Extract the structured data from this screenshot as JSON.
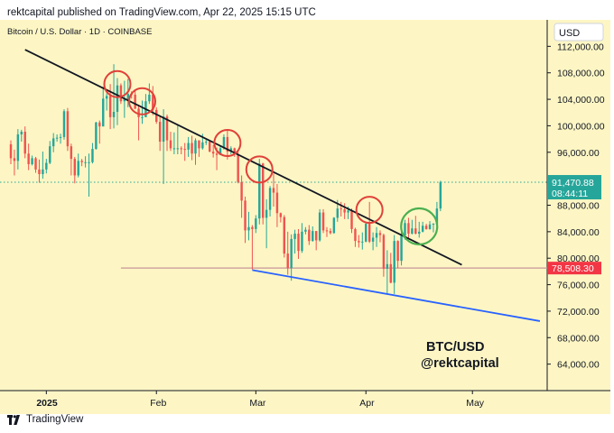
{
  "header": {
    "text": "rektcapital published on TradingView.com, Apr 22, 2025 15:15 UTC"
  },
  "footer": {
    "brand": "TradingView",
    "logo_icon": "tradingview-logo-icon"
  },
  "chart_data": {
    "type": "candlestick",
    "symbol_title": "Bitcoin / U.S. Dollar · 1D · COINBASE",
    "currency": "USD",
    "ylim": [
      60000,
      116000
    ],
    "y_ticks": [
      64000,
      68000,
      72000,
      76000,
      80000,
      84000,
      88000,
      92000,
      96000,
      100000,
      104000,
      108000,
      112000
    ],
    "y_tick_labels": [
      "64,000.00",
      "68,000.00",
      "72,000.00",
      "76,000.00",
      "80,000.00",
      "84,000.00",
      "88,000.00",
      "92,000.00",
      "96,000.00",
      "100,000.00",
      "104,000.00",
      "108,000.00",
      "112,000.00"
    ],
    "x_range": [
      "2024-12-22",
      "2025-05-19"
    ],
    "x_ticks": [
      {
        "date": "2025-01-01",
        "label": "2025",
        "bold": true
      },
      {
        "date": "2025-02-01",
        "label": "Feb",
        "bold": false
      },
      {
        "date": "2025-03-01",
        "label": "Mar",
        "bold": false
      },
      {
        "date": "2025-04-01",
        "label": "Apr",
        "bold": false
      },
      {
        "date": "2025-05-01",
        "label": "May",
        "bold": false
      }
    ],
    "ohlc": [
      [
        "2024-12-22",
        97200,
        97800,
        94200,
        95100
      ],
      [
        "2024-12-23",
        95100,
        96400,
        92500,
        94700
      ],
      [
        "2024-12-24",
        94700,
        99500,
        93400,
        98700
      ],
      [
        "2024-12-25",
        98700,
        99400,
        97600,
        99100
      ],
      [
        "2024-12-26",
        99100,
        99900,
        95100,
        95800
      ],
      [
        "2024-12-27",
        95800,
        97300,
        93300,
        94200
      ],
      [
        "2024-12-28",
        94200,
        95500,
        94000,
        95100
      ],
      [
        "2024-12-29",
        95100,
        95300,
        92900,
        93400
      ],
      [
        "2024-12-30",
        93400,
        94900,
        91400,
        92700
      ],
      [
        "2024-12-31",
        92700,
        96100,
        92000,
        93400
      ],
      [
        "2025-01-01",
        93400,
        95000,
        92800,
        94400
      ],
      [
        "2025-01-02",
        94400,
        97700,
        94200,
        96900
      ],
      [
        "2025-01-03",
        96900,
        98900,
        96000,
        98100
      ],
      [
        "2025-01-04",
        98100,
        98700,
        97600,
        98200
      ],
      [
        "2025-01-05",
        98200,
        98800,
        97300,
        98300
      ],
      [
        "2025-01-06",
        98300,
        102500,
        97900,
        102200
      ],
      [
        "2025-01-07",
        102200,
        102700,
        96200,
        96900
      ],
      [
        "2025-01-08",
        96900,
        97300,
        92500,
        95000
      ],
      [
        "2025-01-09",
        95000,
        95300,
        91300,
        92500
      ],
      [
        "2025-01-10",
        92500,
        95800,
        92200,
        94700
      ],
      [
        "2025-01-11",
        94700,
        95000,
        93900,
        94500
      ],
      [
        "2025-01-12",
        94500,
        95400,
        93700,
        94500
      ],
      [
        "2025-01-13",
        94500,
        95800,
        89300,
        94500
      ],
      [
        "2025-01-14",
        94500,
        97400,
        94300,
        96500
      ],
      [
        "2025-01-15",
        96500,
        100600,
        96400,
        100500
      ],
      [
        "2025-01-16",
        100500,
        100800,
        97300,
        99900
      ],
      [
        "2025-01-17",
        99900,
        105900,
        99900,
        104100
      ],
      [
        "2025-01-18",
        104100,
        104900,
        102300,
        104500
      ],
      [
        "2025-01-19",
        104500,
        106300,
        99500,
        101300
      ],
      [
        "2025-01-20",
        101300,
        109300,
        99600,
        102100
      ],
      [
        "2025-01-21",
        102100,
        107200,
        100100,
        106100
      ],
      [
        "2025-01-22",
        106100,
        106400,
        103300,
        103700
      ],
      [
        "2025-01-23",
        103700,
        106800,
        101200,
        104000
      ],
      [
        "2025-01-24",
        104000,
        107100,
        102800,
        104800
      ],
      [
        "2025-01-25",
        104800,
        105200,
        104100,
        104700
      ],
      [
        "2025-01-26",
        104700,
        105500,
        102500,
        102600
      ],
      [
        "2025-01-27",
        102600,
        103200,
        97800,
        101300
      ],
      [
        "2025-01-28",
        101300,
        103800,
        100300,
        101300
      ],
      [
        "2025-01-29",
        101300,
        104800,
        101300,
        103700
      ],
      [
        "2025-01-30",
        103700,
        106400,
        103300,
        104700
      ],
      [
        "2025-01-31",
        104700,
        106000,
        101600,
        102400
      ],
      [
        "2025-02-01",
        102400,
        102800,
        100300,
        100600
      ],
      [
        "2025-02-02",
        100600,
        101500,
        96200,
        97600
      ],
      [
        "2025-02-03",
        97600,
        102500,
        91200,
        101400
      ],
      [
        "2025-02-04",
        101400,
        101700,
        96200,
        97800
      ],
      [
        "2025-02-05",
        97800,
        99100,
        96200,
        96600
      ],
      [
        "2025-02-06",
        96600,
        99000,
        95700,
        96600
      ],
      [
        "2025-02-07",
        96600,
        100100,
        95700,
        96600
      ],
      [
        "2025-02-08",
        96600,
        96900,
        95700,
        96500
      ],
      [
        "2025-02-09",
        96500,
        97400,
        94700,
        96400
      ],
      [
        "2025-02-10",
        96400,
        98300,
        95300,
        97400
      ],
      [
        "2025-02-11",
        97400,
        98500,
        94800,
        95800
      ],
      [
        "2025-02-12",
        95800,
        98100,
        94100,
        97800
      ],
      [
        "2025-02-13",
        97800,
        97800,
        95300,
        96600
      ],
      [
        "2025-02-14",
        96600,
        98800,
        96400,
        97500
      ],
      [
        "2025-02-15",
        97500,
        97900,
        97100,
        97600
      ],
      [
        "2025-02-16",
        97600,
        97800,
        96000,
        96100
      ],
      [
        "2025-02-17",
        96100,
        97100,
        95200,
        95800
      ],
      [
        "2025-02-18",
        95800,
        96700,
        93300,
        95600
      ],
      [
        "2025-02-19",
        95600,
        96900,
        95600,
        96600
      ],
      [
        "2025-02-20",
        96600,
        98700,
        96400,
        98300
      ],
      [
        "2025-02-21",
        98300,
        99500,
        94900,
        96100
      ],
      [
        "2025-02-22",
        96100,
        96900,
        95700,
        96600
      ],
      [
        "2025-02-23",
        96600,
        96700,
        95300,
        95700
      ],
      [
        "2025-02-24",
        95700,
        96200,
        91300,
        91500
      ],
      [
        "2025-02-25",
        91500,
        92500,
        86100,
        88700
      ],
      [
        "2025-02-26",
        88700,
        89300,
        82300,
        84200
      ],
      [
        "2025-02-27",
        84200,
        87000,
        82700,
        84700
      ],
      [
        "2025-02-28",
        84700,
        85000,
        78300,
        84400
      ],
      [
        "2025-03-01",
        84400,
        86500,
        83800,
        86000
      ],
      [
        "2025-03-02",
        86000,
        95000,
        85100,
        94300
      ],
      [
        "2025-03-03",
        94300,
        94400,
        85100,
        86100
      ],
      [
        "2025-03-04",
        86100,
        88900,
        81500,
        87300
      ],
      [
        "2025-03-05",
        87300,
        90900,
        86300,
        90600
      ],
      [
        "2025-03-06",
        90600,
        92800,
        87800,
        89900
      ],
      [
        "2025-03-07",
        89900,
        91200,
        84700,
        86800
      ],
      [
        "2025-03-08",
        86800,
        86900,
        85400,
        86200
      ],
      [
        "2025-03-09",
        86200,
        86500,
        80100,
        80700
      ],
      [
        "2025-03-10",
        80700,
        84000,
        77500,
        78500
      ],
      [
        "2025-03-11",
        78500,
        83600,
        76600,
        82900
      ],
      [
        "2025-03-12",
        82900,
        84300,
        80700,
        83700
      ],
      [
        "2025-03-13",
        83700,
        84400,
        79900,
        81100
      ],
      [
        "2025-03-14",
        81100,
        85300,
        80800,
        84000
      ],
      [
        "2025-03-15",
        84000,
        84700,
        83600,
        84300
      ],
      [
        "2025-03-16",
        84300,
        85000,
        82000,
        82600
      ],
      [
        "2025-03-17",
        82600,
        84800,
        82500,
        84100
      ],
      [
        "2025-03-18",
        84100,
        84100,
        81200,
        82700
      ],
      [
        "2025-03-19",
        82700,
        87400,
        82500,
        86900
      ],
      [
        "2025-03-20",
        86900,
        87400,
        83800,
        84200
      ],
      [
        "2025-03-21",
        84200,
        84700,
        83200,
        84100
      ],
      [
        "2025-03-22",
        84100,
        84500,
        83600,
        83800
      ],
      [
        "2025-03-23",
        83800,
        86200,
        83700,
        86100
      ],
      [
        "2025-03-24",
        86100,
        88800,
        85500,
        87500
      ],
      [
        "2025-03-25",
        87500,
        88500,
        86300,
        87400
      ],
      [
        "2025-03-26",
        87400,
        88300,
        85900,
        86900
      ],
      [
        "2025-03-27",
        86900,
        87800,
        85900,
        87200
      ],
      [
        "2025-03-28",
        87200,
        87500,
        83800,
        84400
      ],
      [
        "2025-03-29",
        84400,
        84600,
        81700,
        82600
      ],
      [
        "2025-03-30",
        82600,
        83500,
        81600,
        82400
      ],
      [
        "2025-03-31",
        82400,
        83900,
        81300,
        82500
      ],
      [
        "2025-04-01",
        82500,
        85500,
        82400,
        85200
      ],
      [
        "2025-04-02",
        85200,
        88500,
        82300,
        82500
      ],
      [
        "2025-04-03",
        82500,
        83900,
        81200,
        83100
      ],
      [
        "2025-04-04",
        83100,
        84700,
        81700,
        83800
      ],
      [
        "2025-04-05",
        83800,
        84200,
        82400,
        83500
      ],
      [
        "2025-04-06",
        83500,
        83700,
        77200,
        78400
      ],
      [
        "2025-04-07",
        78400,
        81200,
        74500,
        79100
      ],
      [
        "2025-04-08",
        79100,
        80800,
        76200,
        76300
      ],
      [
        "2025-04-09",
        76300,
        83500,
        74600,
        82600
      ],
      [
        "2025-04-10",
        82600,
        82700,
        78500,
        79600
      ],
      [
        "2025-04-11",
        79600,
        84300,
        78900,
        83400
      ],
      [
        "2025-04-12",
        83400,
        85800,
        82800,
        85300
      ],
      [
        "2025-04-13",
        85300,
        86100,
        83000,
        83700
      ],
      [
        "2025-04-14",
        83700,
        85800,
        83600,
        84500
      ],
      [
        "2025-04-15",
        84500,
        86400,
        83600,
        83700
      ],
      [
        "2025-04-16",
        83700,
        85500,
        83100,
        84000
      ],
      [
        "2025-04-17",
        84000,
        85500,
        83900,
        84900
      ],
      [
        "2025-04-18",
        84900,
        85200,
        84300,
        84400
      ],
      [
        "2025-04-19",
        84400,
        85600,
        84300,
        85100
      ],
      [
        "2025-04-20",
        85100,
        85300,
        83900,
        85200
      ],
      [
        "2025-04-21",
        85200,
        88500,
        85100,
        87500
      ],
      [
        "2025-04-22",
        87500,
        91700,
        87100,
        91470.88
      ]
    ],
    "drawings": {
      "resistance_line": {
        "from": [
          "2024-12-26",
          111500
        ],
        "to": [
          "2025-04-28",
          79000
        ],
        "color": "#131722"
      },
      "support_line": {
        "from": [
          "2025-02-28",
          78200
        ],
        "to": [
          "2025-05-20",
          70500
        ],
        "color": "#2962ff"
      },
      "horizontal_level": {
        "price": 78508.3,
        "from_date": "2025-01-22",
        "color": "#c8959a"
      },
      "last_price_dotted": {
        "price": 91470.88,
        "color": "#26a69a"
      },
      "red_circles": [
        [
          "2025-01-21",
          106300
        ],
        [
          "2025-01-28",
          103700
        ],
        [
          "2025-02-21",
          97400
        ],
        [
          "2025-03-02",
          93400
        ],
        [
          "2025-04-02",
          87300
        ]
      ],
      "green_circle": [
        "2025-04-16",
        84800
      ],
      "circle_red_color": "#e0413a",
      "circle_green_color": "#4caf50"
    },
    "price_labels": {
      "last_price": "91,470.88",
      "countdown": "08:44:11",
      "level": "78,508.30"
    },
    "annotation": {
      "line1": "BTC/USD",
      "line2": "@rektcapital"
    },
    "colors": {
      "background": "#fdf6c4",
      "up": "#26a69a",
      "down": "#ef5350",
      "last_price_box": "#26a69a",
      "level_box": "#f23645"
    }
  }
}
